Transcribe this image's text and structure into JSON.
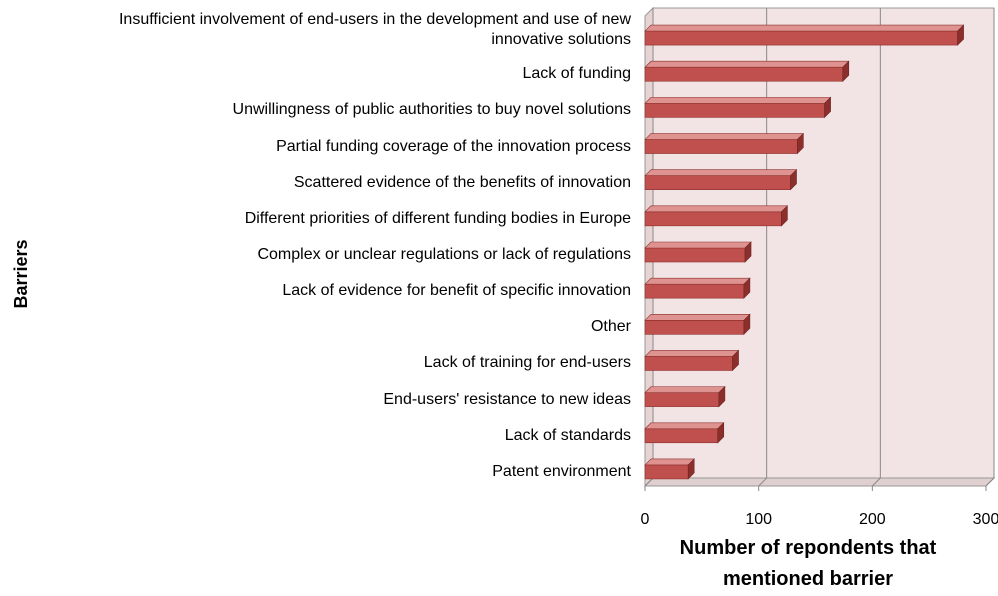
{
  "chart_data": {
    "type": "bar3d_horizontal",
    "y_label": "Barriers",
    "x_label": "Number of repondents that mentioned barrier",
    "categories": [
      "Insufficient involvement of end-users in the development and use of new innovative solutions",
      "Lack of funding",
      "Unwillingness of public authorities to buy novel solutions",
      "Partial funding coverage of the innovation process",
      "Scattered evidence of the benefits of innovation",
      "Different priorities of different funding bodies in Europe",
      "Complex or unclear regulations or lack of regulations",
      "Lack of evidence for benefit of specific innovation",
      "Other",
      "Lack of training for end-users",
      "End-users' resistance to new ideas",
      "Lack of standards",
      "Patent environment"
    ],
    "values": [
      275,
      174,
      158,
      134,
      128,
      120,
      88,
      87,
      87,
      77,
      65,
      64,
      38
    ],
    "color": "#c0504d",
    "xlim": [
      0,
      300
    ],
    "xticks": [
      0,
      100,
      200,
      300
    ],
    "grid": true
  }
}
